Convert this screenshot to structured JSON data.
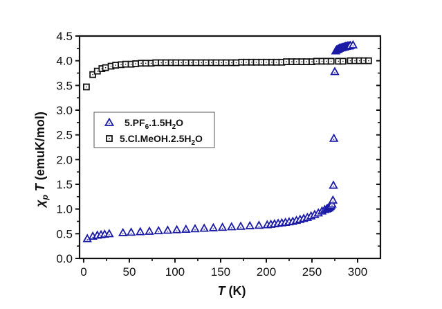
{
  "chart_data": {
    "type": "scatter",
    "title": "",
    "xlabel": "T (K)",
    "xlabel_italic": "T",
    "xlabel_unit": " (K)",
    "ylabel": "χp T (emuK/mol)",
    "ylabel_chi": "χ",
    "ylabel_sub": "p",
    "ylabel_T": " T",
    "ylabel_unit": " (emuK/mol)",
    "xlim": [
      -4.5,
      325
    ],
    "ylim": [
      0.0,
      4.5
    ],
    "xticks": [
      0,
      50,
      100,
      150,
      200,
      250,
      300
    ],
    "xtick_labels": [
      "0",
      "50",
      "100",
      "150",
      "200",
      "250",
      "300"
    ],
    "yticks": [
      0.0,
      0.5,
      1.0,
      1.5,
      2.0,
      2.5,
      3.0,
      3.5,
      4.0,
      4.5
    ],
    "ytick_labels": [
      "0.0",
      "0.5",
      "1.0",
      "1.5",
      "2.0",
      "2.5",
      "3.0",
      "3.5",
      "4.0",
      "4.5"
    ],
    "grid": false,
    "legend_position": "center-left",
    "series": [
      {
        "name": "5.PF6.1.5H2O",
        "label_parts": [
          "5.PF",
          "6",
          ".1.5H",
          "2",
          "O"
        ],
        "marker": "triangle",
        "color": "#1a1aa6",
        "x": [
          4,
          10,
          15,
          19,
          23,
          28,
          43,
          52,
          62,
          72,
          82,
          92,
          102,
          112,
          122,
          132,
          142,
          152,
          162,
          172,
          182,
          192,
          201,
          205,
          209,
          213,
          217,
          221,
          225,
          229,
          233,
          237,
          241,
          245,
          249,
          253,
          257,
          261,
          264,
          266,
          267,
          268,
          269,
          270,
          271,
          272,
          273,
          273.5,
          274,
          275,
          276,
          277,
          278,
          279,
          280,
          281,
          282,
          283,
          284,
          285,
          286,
          287,
          288,
          289,
          290,
          291,
          292,
          295
        ],
        "y": [
          0.4,
          0.45,
          0.47,
          0.48,
          0.49,
          0.5,
          0.52,
          0.53,
          0.54,
          0.55,
          0.56,
          0.57,
          0.58,
          0.59,
          0.6,
          0.61,
          0.62,
          0.63,
          0.64,
          0.65,
          0.66,
          0.67,
          0.68,
          0.69,
          0.7,
          0.71,
          0.72,
          0.73,
          0.74,
          0.75,
          0.77,
          0.79,
          0.81,
          0.83,
          0.86,
          0.89,
          0.92,
          0.96,
          0.99,
          1.0,
          1.01,
          1.02,
          1.03,
          1.05,
          1.07,
          1.1,
          1.18,
          1.48,
          2.43,
          3.78,
          4.2,
          4.22,
          4.23,
          4.24,
          4.25,
          4.26,
          4.26,
          4.27,
          4.27,
          4.28,
          4.28,
          4.29,
          4.29,
          4.3,
          4.3,
          4.3,
          4.31,
          4.32
        ]
      },
      {
        "name": "5.Cl.MeOH.2.5H2O",
        "label_parts": [
          "5.Cl.MeOH.2.5H",
          "2",
          "O"
        ],
        "marker": "square",
        "color": "#111111",
        "x": [
          3,
          10,
          15,
          20,
          24,
          30,
          35,
          41,
          46,
          52,
          57,
          63,
          68,
          74,
          79,
          85,
          90,
          96,
          101,
          107,
          112,
          118,
          123,
          129,
          134,
          140,
          145,
          151,
          156,
          162,
          167,
          173,
          178,
          184,
          189,
          195,
          200,
          206,
          211,
          217,
          222,
          228,
          233,
          239,
          244,
          250,
          255,
          261,
          266,
          271,
          279,
          284,
          292,
          297,
          302,
          307,
          312
        ],
        "y": [
          3.47,
          3.72,
          3.79,
          3.84,
          3.86,
          3.89,
          3.91,
          3.92,
          3.93,
          3.93,
          3.94,
          3.95,
          3.95,
          3.95,
          3.96,
          3.96,
          3.96,
          3.96,
          3.96,
          3.96,
          3.96,
          3.96,
          3.96,
          3.96,
          3.96,
          3.96,
          3.96,
          3.96,
          3.96,
          3.96,
          3.96,
          3.97,
          3.97,
          3.97,
          3.97,
          3.97,
          3.97,
          3.97,
          3.97,
          3.97,
          3.98,
          3.98,
          3.98,
          3.98,
          3.98,
          3.98,
          3.99,
          3.99,
          3.99,
          3.99,
          3.99,
          3.99,
          4.0,
          4.0,
          4.0,
          4.0,
          4.0
        ]
      }
    ]
  }
}
